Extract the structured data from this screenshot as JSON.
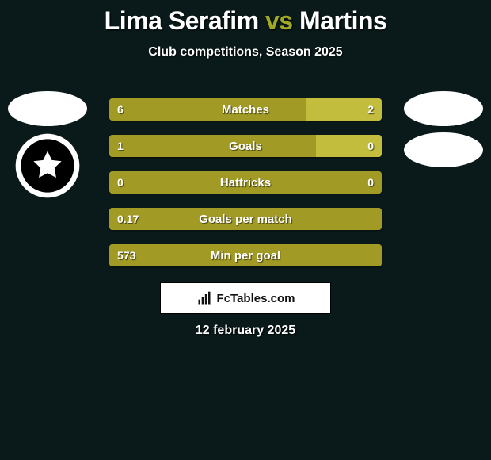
{
  "title": {
    "player1": "Lima Serafim",
    "vs": "vs",
    "player2": "Martins"
  },
  "subtitle": "Club competitions, Season 2025",
  "colors": {
    "olive_dark": "#a19b26",
    "olive_light": "#c3bd3e",
    "background": "#0a1a1a",
    "white": "#ffffff",
    "badge_border": "#000000"
  },
  "avatars": {
    "left": {
      "ellipse": true,
      "club_badge": true
    },
    "right": {
      "ellipse1": true,
      "ellipse2": true
    }
  },
  "bars": [
    {
      "label": "Matches",
      "left_val": "6",
      "right_val": "2",
      "left_pct": 72,
      "right_pct": 28,
      "left_color": "#a19b26",
      "right_color": "#c3bd3e"
    },
    {
      "label": "Goals",
      "left_val": "1",
      "right_val": "0",
      "left_pct": 76,
      "right_pct": 24,
      "left_color": "#a19b26",
      "right_color": "#c3bd3e"
    },
    {
      "label": "Hattricks",
      "left_val": "0",
      "right_val": "0",
      "left_pct": 100,
      "right_pct": 0,
      "left_color": "#a19b26",
      "right_color": "#c3bd3e"
    },
    {
      "label": "Goals per match",
      "left_val": "0.17",
      "right_val": "",
      "left_pct": 100,
      "right_pct": 0,
      "left_color": "#a19b26",
      "right_color": "#c3bd3e"
    },
    {
      "label": "Min per goal",
      "left_val": "573",
      "right_val": "",
      "left_pct": 100,
      "right_pct": 0,
      "left_color": "#a19b26",
      "right_color": "#c3bd3e"
    }
  ],
  "footer": {
    "brand": "FcTables.com",
    "date": "12 february 2025"
  }
}
